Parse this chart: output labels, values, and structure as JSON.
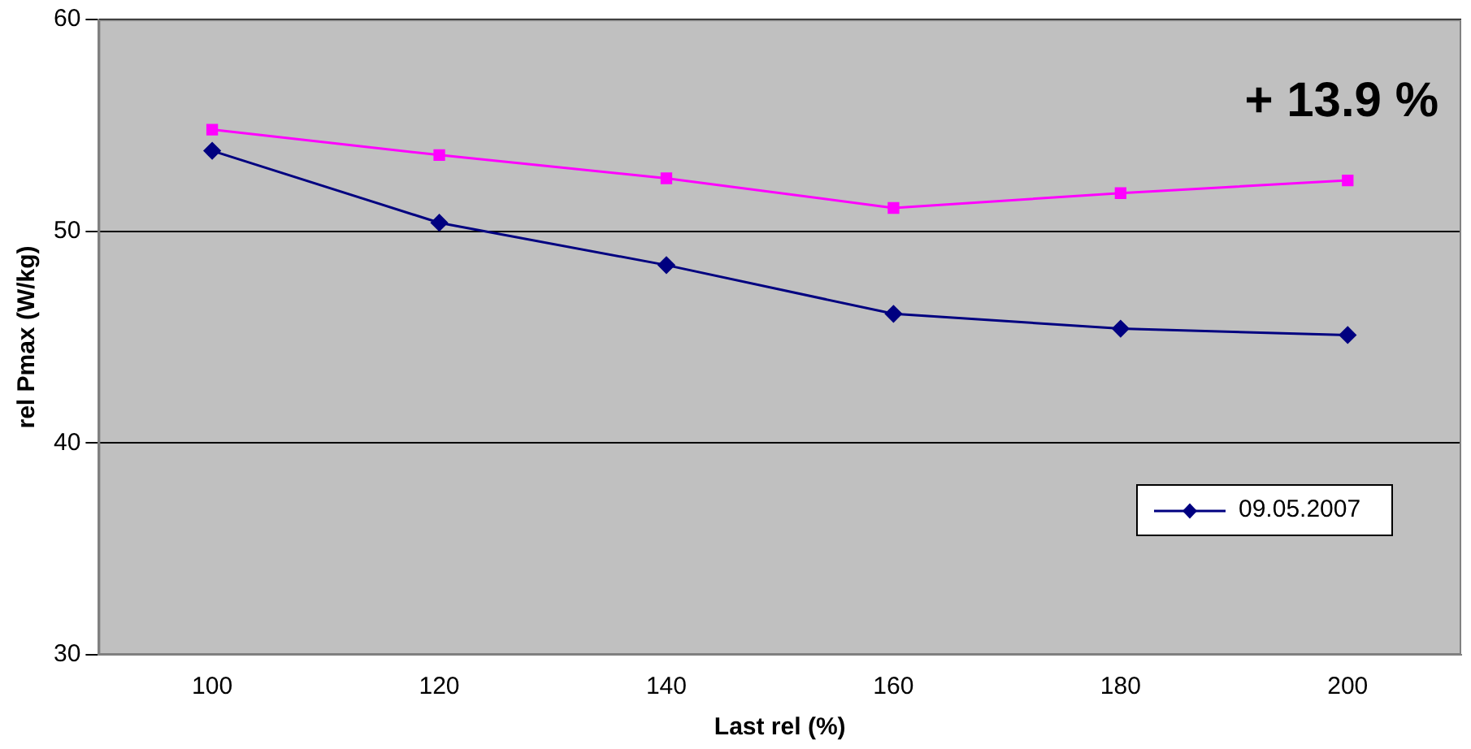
{
  "chart_data": {
    "type": "line",
    "xlabel": "Last rel (%)",
    "ylabel": "rel Pmax (W/kg)",
    "annotations": [
      "+ 13.9 %"
    ],
    "categories": [
      "100",
      "120",
      "140",
      "160",
      "180",
      "200"
    ],
    "series": [
      {
        "name": "09.05.2007",
        "color": "#000080",
        "marker": "diamond",
        "values": [
          53.8,
          50.4,
          48.4,
          46.1,
          45.4,
          45.1
        ]
      },
      {
        "color": "#ff00ff",
        "marker": "square",
        "values": [
          54.8,
          53.6,
          52.5,
          51.1,
          51.8,
          52.4
        ]
      }
    ],
    "ylim": [
      30,
      60
    ],
    "yticks": [
      30,
      40,
      50,
      60
    ],
    "grid": "y",
    "legend": "bottom right",
    "line_style": "solid"
  }
}
